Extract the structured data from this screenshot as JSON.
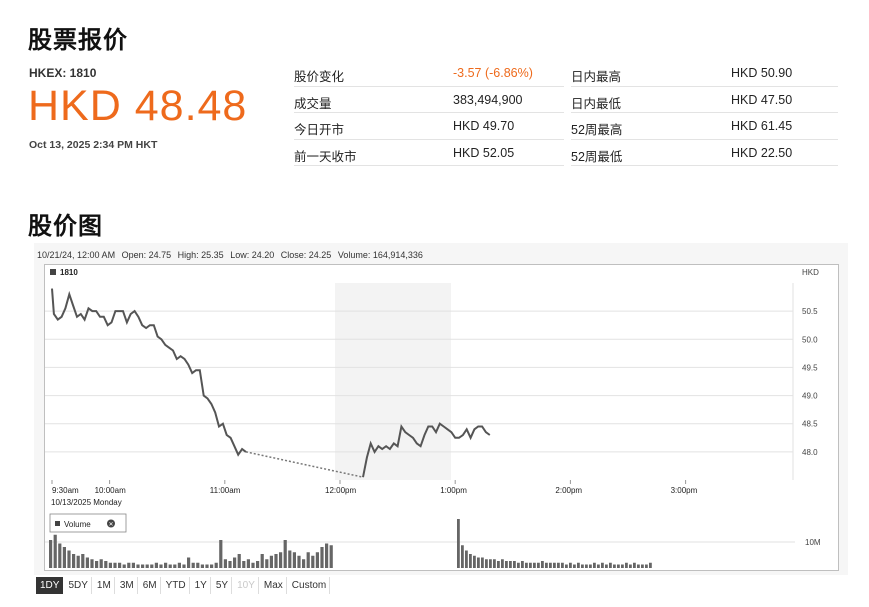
{
  "quote": {
    "title": "股票报价",
    "ticker": "HKEX: 1810",
    "price": "HKD 48.48",
    "time": "Oct 13, 2025 2:34 PM HKT",
    "accent_color": "#ee6a1c",
    "stats_left": [
      {
        "label": "股价变化",
        "value": "-3.57 (-6.86%)",
        "negative": true
      },
      {
        "label": "成交量",
        "value": "383,494,900",
        "negative": false
      },
      {
        "label": "今日开市",
        "value": "HKD 49.70",
        "negative": false
      },
      {
        "label": "前一天收市",
        "value": "HKD 52.05",
        "negative": false
      }
    ],
    "stats_right": [
      {
        "label": "日内最高",
        "value": "HKD 50.90"
      },
      {
        "label": "日内最低",
        "value": "HKD 47.50"
      },
      {
        "label": "52周最高",
        "value": "HKD 61.45"
      },
      {
        "label": "52周最低",
        "value": "HKD 22.50"
      }
    ]
  },
  "chart_section": {
    "title": "股价图",
    "info": {
      "date": "10/21/24, 12:00 AM",
      "open": "Open: 24.75",
      "high": "High: 25.35",
      "low": "Low: 24.20",
      "close": "Close: 24.25",
      "volume": "Volume: 164,914,336"
    },
    "legend_label": "1810",
    "volume_legend": "Volume",
    "currency": "HKD",
    "volume_tick": "10M",
    "date_label": "10/13/2025 Monday"
  },
  "chart_data": {
    "type": "line",
    "ylim": [
      47.5,
      51.0
    ],
    "y_ticks": [
      "50.5",
      "50.0",
      "49.5",
      "49.0",
      "48.5",
      "48.0"
    ],
    "x_ticks": [
      "9:30am",
      "10:00am",
      "11:00am",
      "12:00pm",
      "1:00pm",
      "2:00pm",
      "3:00pm"
    ],
    "x_tick_minutes": [
      0,
      30,
      90,
      150,
      210,
      270,
      330
    ],
    "lunch_break_minutes": [
      150,
      210
    ],
    "price_series": [
      [
        0,
        50.9
      ],
      [
        1,
        50.45
      ],
      [
        3,
        50.35
      ],
      [
        5,
        50.4
      ],
      [
        7,
        50.55
      ],
      [
        9,
        50.8
      ],
      [
        11,
        50.6
      ],
      [
        13,
        50.4
      ],
      [
        15,
        50.45
      ],
      [
        17,
        50.35
      ],
      [
        19,
        50.55
      ],
      [
        21,
        50.5
      ],
      [
        23,
        50.5
      ],
      [
        25,
        50.4
      ],
      [
        27,
        50.4
      ],
      [
        29,
        50.25
      ],
      [
        31,
        50.3
      ],
      [
        33,
        50.5
      ],
      [
        35,
        50.5
      ],
      [
        37,
        50.5
      ],
      [
        39,
        50.3
      ],
      [
        41,
        50.45
      ],
      [
        43,
        50.5
      ],
      [
        45,
        50.4
      ],
      [
        47,
        50.25
      ],
      [
        49,
        50.2
      ],
      [
        51,
        50.25
      ],
      [
        53,
        50.25
      ],
      [
        55,
        50.05
      ],
      [
        57,
        50.0
      ],
      [
        59,
        49.9
      ],
      [
        61,
        49.85
      ],
      [
        63,
        49.8
      ],
      [
        65,
        49.65
      ],
      [
        67,
        49.7
      ],
      [
        69,
        49.65
      ],
      [
        71,
        49.55
      ],
      [
        73,
        49.4
      ],
      [
        75,
        49.45
      ],
      [
        77,
        49.45
      ],
      [
        79,
        49.0
      ],
      [
        81,
        48.95
      ],
      [
        83,
        48.85
      ],
      [
        85,
        48.7
      ],
      [
        87,
        48.45
      ],
      [
        89,
        48.5
      ],
      [
        91,
        48.3
      ],
      [
        93,
        48.25
      ],
      [
        95,
        48.1
      ],
      [
        97,
        47.95
      ],
      [
        99,
        48.05
      ],
      [
        101,
        48.0
      ],
      [
        162,
        47.55
      ],
      [
        164,
        47.9
      ],
      [
        166,
        48.15
      ],
      [
        168,
        48.0
      ],
      [
        170,
        48.1
      ],
      [
        172,
        48.05
      ],
      [
        174,
        48.1
      ],
      [
        176,
        48.05
      ],
      [
        178,
        48.15
      ],
      [
        180,
        48.1
      ],
      [
        182,
        48.45
      ],
      [
        184,
        48.35
      ],
      [
        186,
        48.3
      ],
      [
        188,
        48.25
      ],
      [
        190,
        48.15
      ],
      [
        192,
        48.1
      ],
      [
        194,
        48.3
      ],
      [
        196,
        48.45
      ],
      [
        198,
        48.45
      ],
      [
        200,
        48.35
      ],
      [
        202,
        48.5
      ],
      [
        204,
        48.45
      ],
      [
        206,
        48.4
      ],
      [
        208,
        48.35
      ],
      [
        210,
        48.25
      ],
      [
        212,
        48.25
      ],
      [
        214,
        48.3
      ],
      [
        216,
        48.4
      ],
      [
        218,
        48.25
      ],
      [
        220,
        48.4
      ],
      [
        222,
        48.45
      ],
      [
        224,
        48.45
      ],
      [
        226,
        48.35
      ],
      [
        228,
        48.3
      ]
    ],
    "volume_ylim": [
      0,
      15
    ],
    "volume_series_am": [
      8,
      9.5,
      7,
      6,
      5,
      4,
      3.5,
      4,
      3,
      2.5,
      2,
      2.5,
      2,
      1.5,
      1.5,
      1.5,
      1,
      1.5,
      1.5,
      1,
      1,
      1,
      1,
      1.5,
      1,
      1.5,
      1,
      1,
      1.5,
      1,
      3,
      1.5,
      1.5,
      1,
      1,
      1,
      1.5,
      8,
      2.5,
      2,
      3,
      4,
      2,
      2.5,
      1.5,
      2,
      4,
      2.5,
      3.5,
      4,
      4.5,
      8,
      5,
      4.5,
      3.5,
      2.5,
      4.5,
      3.5,
      4.5,
      6,
      7,
      6.5
    ],
    "volume_series_pm": [
      14,
      6.5,
      5,
      4,
      3.5,
      3,
      3,
      2.5,
      2.5,
      2.5,
      2,
      2.5,
      2,
      2,
      2,
      1.5,
      2,
      1.5,
      1.5,
      1.5,
      1.5,
      2,
      1.5,
      1.5,
      1.5,
      1.5,
      1.5,
      1,
      1.5,
      1,
      1.5,
      1,
      1,
      1,
      1.5,
      1,
      1.5,
      1,
      1.5,
      1,
      1,
      1,
      1.5,
      1,
      1.5,
      1,
      1,
      1,
      1.5
    ]
  },
  "range_buttons": [
    {
      "label": "1DY",
      "state": "active"
    },
    {
      "label": "5DY",
      "state": "normal"
    },
    {
      "label": "1M",
      "state": "normal"
    },
    {
      "label": "3M",
      "state": "normal"
    },
    {
      "label": "6M",
      "state": "normal"
    },
    {
      "label": "YTD",
      "state": "normal"
    },
    {
      "label": "1Y",
      "state": "normal"
    },
    {
      "label": "5Y",
      "state": "normal"
    },
    {
      "label": "10Y",
      "state": "disabled"
    },
    {
      "label": "Max",
      "state": "normal"
    },
    {
      "label": "Custom",
      "state": "normal"
    }
  ]
}
